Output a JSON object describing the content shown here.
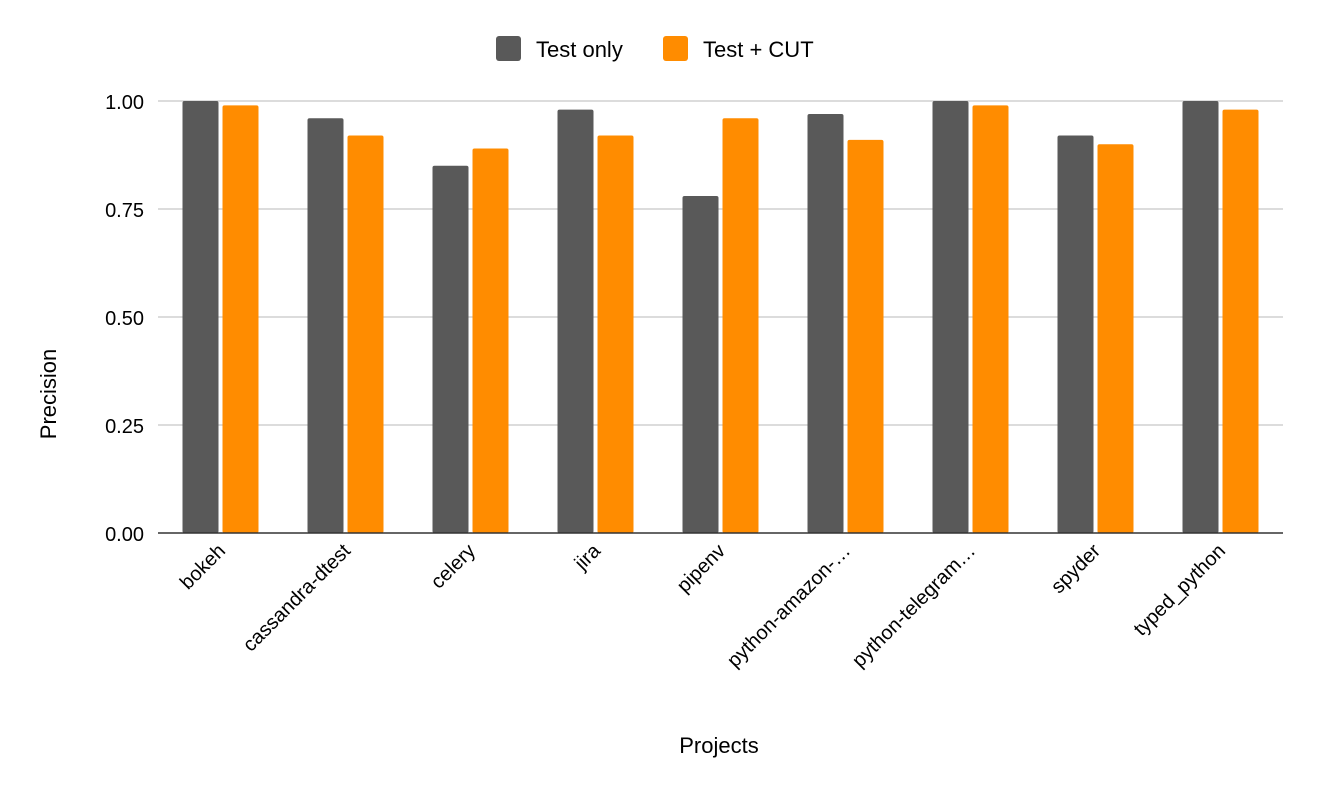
{
  "chart_data": {
    "type": "bar",
    "xlabel": "Projects",
    "ylabel": "Precision",
    "ylim": [
      0,
      1
    ],
    "yticks": [
      "0.00",
      "0.25",
      "0.50",
      "0.75",
      "1.00"
    ],
    "grid": true,
    "legend_position": "top",
    "categories": [
      "bokeh",
      "cassandra-dtest",
      "celery",
      "jira",
      "pipenv",
      "python-amazon-…",
      "python-telegram…",
      "spyder",
      "typed_python"
    ],
    "series": [
      {
        "name": "Test only",
        "color": "#595959",
        "values": [
          1.0,
          0.96,
          0.85,
          0.98,
          0.78,
          0.97,
          1.0,
          0.92,
          1.0
        ]
      },
      {
        "name": "Test + CUT",
        "color": "#ff8c00",
        "values": [
          0.99,
          0.92,
          0.89,
          0.92,
          0.96,
          0.91,
          0.99,
          0.9,
          0.98
        ]
      }
    ]
  }
}
